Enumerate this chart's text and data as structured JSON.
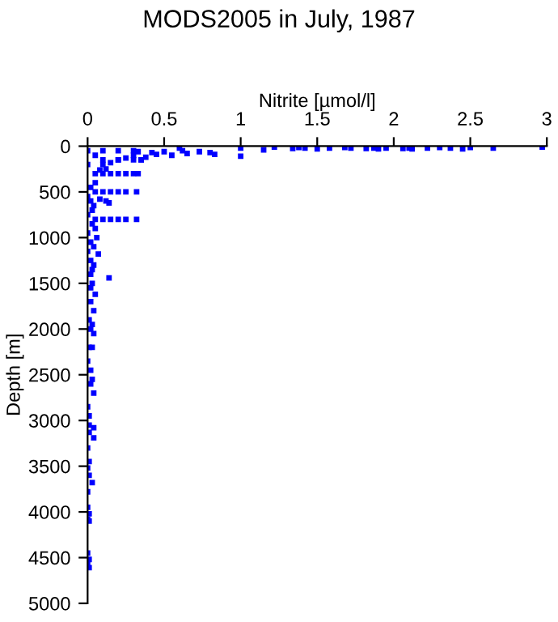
{
  "chart_data": {
    "type": "scatter",
    "title": "MODS2005 in July, 1987",
    "xlabel": "Nitrite [µmol/l]",
    "ylabel": "Depth [m]",
    "xlim": [
      0,
      3
    ],
    "xticks": [
      0,
      0.5,
      1,
      1.5,
      2,
      2.5,
      3
    ],
    "ylim": [
      5000,
      0
    ],
    "yticks": [
      0,
      500,
      1000,
      1500,
      2000,
      2500,
      3000,
      3500,
      4000,
      4500,
      5000
    ],
    "grid": false,
    "legend": false,
    "marker": "square",
    "series": [
      {
        "color": "#0000ff",
        "x": [
          2.97,
          2.65,
          2.5,
          2.45,
          2.37,
          2.3,
          2.22,
          2.12,
          2.1,
          2.06,
          1.95,
          1.9,
          1.87,
          1.82,
          1.72,
          1.68,
          1.58,
          1.5,
          1.42,
          1.38,
          1.34,
          1.22,
          1.15,
          1.0,
          1.0,
          0.83,
          0.8,
          0.73,
          0.65,
          0.62,
          0.6,
          0.55,
          0.5,
          0.45,
          0.42,
          0.38,
          0.35,
          0.33,
          0.3,
          0.25,
          0.2,
          0.15,
          0.1,
          0.05,
          0.05,
          0.1,
          0.15,
          0.2,
          0.25,
          0.3,
          0.33,
          0.05,
          0.1,
          0.15,
          0.2,
          0.25,
          0.32,
          0.05,
          0.1,
          0.15,
          0.2,
          0.25,
          0.32,
          0.1,
          0.2,
          0.3,
          0.35,
          0.12,
          0.08,
          0.02,
          0.12,
          0.08,
          0.14,
          0.03,
          0.05,
          0.06,
          0.04,
          0.07,
          0.02,
          0.03,
          0.02,
          0.14,
          0.03,
          0.02,
          0.05,
          0.02,
          0.04,
          0.01,
          0.03,
          0.02,
          0.04,
          0.01,
          0.03,
          0.0,
          0.02,
          0.03,
          0.02,
          0.04,
          0.0,
          0.01,
          0.01,
          0.04,
          0.01,
          0.04,
          0.0,
          0.01,
          0.0,
          0.01,
          0.03,
          0.0,
          0.0,
          0.01,
          0.0,
          0.01,
          0.0,
          0.01,
          0.0,
          0.01,
          0.0,
          0.1,
          0.2,
          0.3,
          0.0,
          0.05,
          0.02,
          0.0,
          0.04,
          0.0,
          0.03,
          0.0,
          0.02,
          0.0,
          0.04
        ],
        "values": [
          10,
          20,
          15,
          30,
          20,
          15,
          20,
          30,
          20,
          25,
          20,
          30,
          20,
          25,
          20,
          15,
          20,
          30,
          20,
          15,
          25,
          10,
          40,
          20,
          110,
          90,
          70,
          60,
          80,
          50,
          20,
          100,
          60,
          90,
          70,
          120,
          150,
          60,
          100,
          130,
          150,
          180,
          200,
          100,
          300,
          300,
          300,
          300,
          300,
          300,
          300,
          500,
          500,
          500,
          500,
          500,
          500,
          800,
          800,
          800,
          800,
          800,
          800,
          150,
          150,
          150,
          150,
          250,
          260,
          600,
          600,
          580,
          620,
          700,
          900,
          1000,
          1100,
          1180,
          1250,
          1350,
          1400,
          1440,
          1500,
          1550,
          1620,
          1700,
          1800,
          1900,
          1950,
          2000,
          2050,
          2200,
          2200,
          2350,
          2450,
          2550,
          2600,
          2700,
          2850,
          2950,
          3050,
          3080,
          3130,
          3190,
          3300,
          3450,
          3520,
          3600,
          3680,
          3780,
          3950,
          4020,
          4080,
          4100,
          4450,
          4520,
          4570,
          4610,
          50,
          50,
          50,
          50,
          200,
          400,
          450,
          550,
          650,
          750,
          850,
          950,
          1050,
          1150,
          1300
        ]
      }
    ]
  }
}
